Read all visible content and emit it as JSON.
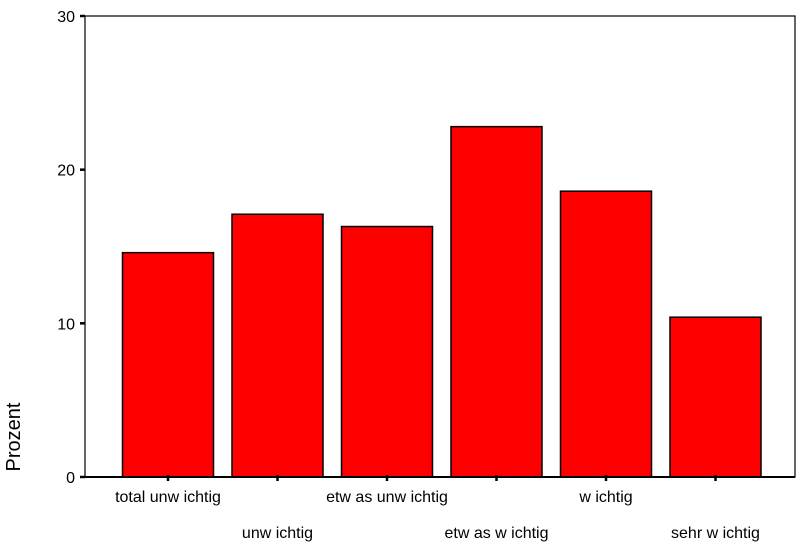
{
  "chart_data": {
    "type": "bar",
    "title": "",
    "xlabel": "",
    "ylabel": "Prozent",
    "ylim": [
      0,
      30
    ],
    "yticks": [
      0,
      10,
      20,
      30
    ],
    "grid": false,
    "bar_color": "#ff0000",
    "categories": [
      "total unw ichtig",
      "unw ichtig",
      "etw as unw ichtig",
      "etw as w ichtig",
      "w ichtig",
      "sehr w ichtig"
    ],
    "values": [
      14.6,
      17.1,
      16.3,
      22.8,
      18.6,
      10.4
    ]
  }
}
